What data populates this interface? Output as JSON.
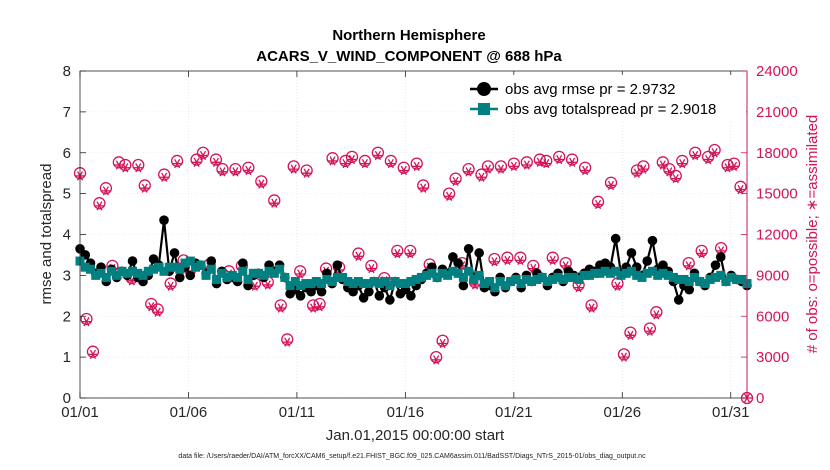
{
  "chart_data": {
    "type": "line",
    "title": [
      "Northern Hemisphere",
      "ACARS_V_WIND_COMPONENT @ 688 hPa"
    ],
    "xlabel": "Jan.01,2015 00:00:00 start",
    "ylabel_left": "rmse and totalspread",
    "ylabel_right": "# of obs: o=possible; ∗=assimilated",
    "footer": "data file: /Users/raeder/DAI/ATM_forcXX/CAM6_setup/f.e21.FHIST_BGC.f09_025.CAM6assim.011/BadSST/Diags_NTrS_2015-01/obs_diag_output.nc",
    "x_ticks": [
      "01/01",
      "01/06",
      "01/11",
      "01/16",
      "01/21",
      "01/26",
      "01/31"
    ],
    "x_tick_days": [
      0,
      5,
      10,
      15,
      20,
      25,
      30
    ],
    "xlim": [
      0,
      30.75
    ],
    "ylim_left": [
      0,
      8
    ],
    "y_ticks_left": [
      "0",
      "1",
      "2",
      "3",
      "4",
      "5",
      "6",
      "7",
      "8"
    ],
    "ylim_right": [
      0,
      24000
    ],
    "y_ticks_right": [
      "0",
      "3000",
      "6000",
      "9000",
      "12000",
      "15000",
      "18000",
      "21000",
      "24000"
    ],
    "grid": true,
    "legend": "top-right",
    "colors": {
      "rmse": "#000000",
      "spread": "#008080",
      "obs": "#d4145a",
      "axis": "#262626"
    },
    "series": [
      {
        "name": "obs avg rmse pr = 2.9732",
        "values": [
          3.65,
          3.5,
          3.3,
          3.05,
          3.2,
          2.85,
          3.15,
          2.95,
          3.1,
          3.0,
          3.35,
          2.95,
          2.85,
          3.0,
          3.4,
          3.25,
          4.35,
          3.1,
          3.55,
          2.95,
          3.2,
          3.0,
          3.3,
          3.25,
          3.05,
          3.35,
          2.8,
          3.1,
          2.9,
          2.95,
          2.85,
          3.3,
          2.75,
          3.0,
          3.05,
          2.95,
          3.25,
          3.1,
          3.25,
          2.95,
          2.55,
          2.65,
          2.5,
          2.7,
          2.6,
          2.75,
          2.6,
          3.05,
          2.8,
          3.25,
          2.9,
          2.7,
          2.6,
          2.75,
          2.45,
          2.6,
          2.85,
          2.5,
          2.7,
          2.4,
          2.85,
          2.55,
          2.65,
          2.5,
          2.75,
          2.9,
          3.05,
          3.2,
          2.95,
          3.15,
          3.05,
          3.45,
          3.3,
          2.75,
          3.65,
          2.9,
          3.55,
          2.7,
          2.75,
          2.6,
          2.95,
          2.7,
          2.85,
          2.95,
          2.7,
          3.0,
          2.85,
          3.05,
          2.95,
          2.75,
          2.95,
          3.05,
          2.85,
          3.1,
          3.0,
          2.95,
          3.05,
          3.15,
          3.1,
          3.25,
          3.3,
          3.2,
          3.9,
          3.05,
          3.2,
          3.55,
          3.2,
          3.0,
          3.35,
          3.85,
          3.15,
          3.25,
          3.1,
          2.85,
          2.4,
          2.75,
          2.65,
          3.05,
          2.85,
          2.75,
          2.95,
          3.25,
          3.45,
          2.85,
          3.0,
          2.9,
          2.85,
          2.75
        ]
      },
      {
        "name": "obs avg totalspread pr = 2.9018",
        "values": [
          3.35,
          3.2,
          3.15,
          3.0,
          3.05,
          2.95,
          3.1,
          3.0,
          3.1,
          3.05,
          3.1,
          3.05,
          3.0,
          3.1,
          3.15,
          3.2,
          3.1,
          3.2,
          3.2,
          3.15,
          3.3,
          3.35,
          3.2,
          3.25,
          3.0,
          3.15,
          2.9,
          3.05,
          2.95,
          3.0,
          2.95,
          3.1,
          2.9,
          3.05,
          3.05,
          3.0,
          3.1,
          3.05,
          3.15,
          2.95,
          2.75,
          2.85,
          2.75,
          2.8,
          2.8,
          2.85,
          2.8,
          2.9,
          2.85,
          2.95,
          2.95,
          2.85,
          2.8,
          2.85,
          2.8,
          2.8,
          2.85,
          2.8,
          2.85,
          2.75,
          2.85,
          2.8,
          2.8,
          2.85,
          2.9,
          2.95,
          3.0,
          3.05,
          2.95,
          3.05,
          3.0,
          3.1,
          3.05,
          2.95,
          3.1,
          2.9,
          3.0,
          2.8,
          2.85,
          2.7,
          2.85,
          2.75,
          2.85,
          2.9,
          2.8,
          2.9,
          2.85,
          2.9,
          2.95,
          2.85,
          2.9,
          2.95,
          2.9,
          2.95,
          2.95,
          2.9,
          3.0,
          3.0,
          3.05,
          3.05,
          3.1,
          3.05,
          3.1,
          3.0,
          3.05,
          3.1,
          3.0,
          2.95,
          3.05,
          3.1,
          3.0,
          3.05,
          3.0,
          2.95,
          2.9,
          2.9,
          2.85,
          2.95,
          2.85,
          2.8,
          2.9,
          2.95,
          3.0,
          2.85,
          2.95,
          2.9,
          2.9,
          2.8
        ]
      },
      {
        "name": "obs possible",
        "values": [
          16500,
          5800,
          3400,
          14300,
          15400,
          9700,
          17300,
          17100,
          8800,
          17100,
          15600,
          6900,
          6500,
          16400,
          8400,
          17400,
          10100,
          9400,
          17500,
          18000,
          9800,
          17500,
          16800,
          9300,
          16800,
          9700,
          16900,
          8400,
          15900,
          8500,
          14500,
          6800,
          4300,
          17000,
          9300,
          16700,
          6800,
          6900,
          9500,
          17600,
          9600,
          17400,
          17700,
          10600,
          17400,
          9700,
          18000,
          8800,
          17400,
          10800,
          16900,
          10800,
          17200,
          15600,
          9800,
          3000,
          4200,
          15000,
          16100,
          9900,
          16800,
          8500,
          16400,
          17000,
          10200,
          17000,
          10300,
          17200,
          10300,
          17300,
          9700,
          17500,
          17400,
          10300,
          17700,
          9900,
          17500,
          8300,
          16900,
          6800,
          14400,
          9600,
          15800,
          8400,
          3200,
          4800,
          16700,
          17000,
          5100,
          6300,
          17300,
          16800,
          16300,
          17400,
          9900,
          18000,
          10800,
          17700,
          18200,
          11000,
          17100,
          17200,
          15500,
          0
        ]
      },
      {
        "name": "obs assimilated",
        "values": [
          16300,
          5600,
          3200,
          14100,
          15200,
          9500,
          17100,
          16900,
          8600,
          16900,
          15400,
          6700,
          6300,
          16200,
          8200,
          17200,
          9900,
          9200,
          17300,
          17800,
          9600,
          17300,
          16600,
          9100,
          16600,
          9500,
          16700,
          8200,
          15700,
          8300,
          14300,
          6600,
          4100,
          16800,
          9100,
          16500,
          6600,
          6700,
          9300,
          17400,
          9400,
          17200,
          17500,
          10400,
          17200,
          9500,
          17800,
          8600,
          17200,
          10600,
          16700,
          10600,
          17000,
          15400,
          9600,
          2800,
          4000,
          14800,
          15900,
          9700,
          16600,
          8300,
          16200,
          16800,
          10000,
          16800,
          10100,
          17000,
          10100,
          17100,
          9500,
          17300,
          17200,
          10100,
          17500,
          9700,
          17300,
          8100,
          16700,
          6600,
          14200,
          9400,
          15600,
          8200,
          3000,
          4600,
          16500,
          16800,
          4900,
          6100,
          17100,
          16600,
          16100,
          17200,
          9700,
          17800,
          10600,
          17500,
          18000,
          10800,
          16900,
          17000,
          15300,
          0
        ]
      }
    ]
  }
}
